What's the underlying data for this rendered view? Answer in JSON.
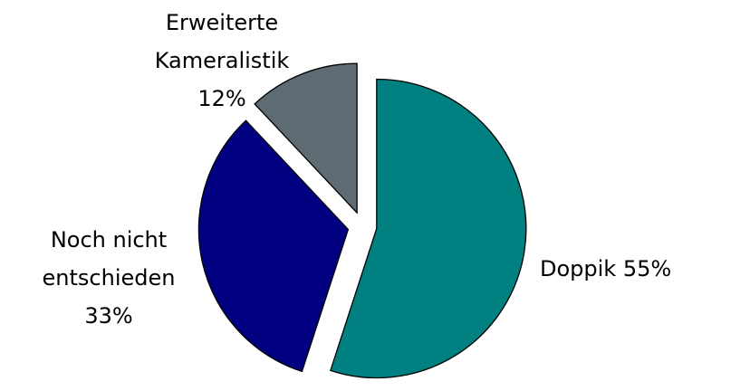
{
  "chart_data": {
    "type": "pie",
    "categories": [
      "Doppik",
      "Noch nicht entschieden",
      "Erweiterte Kameralistik"
    ],
    "values": [
      55,
      33,
      12
    ],
    "value_labels": [
      "55%",
      "33%",
      "12%"
    ],
    "colors": [
      "#008080",
      "#000080",
      "#5f6b73"
    ]
  }
}
